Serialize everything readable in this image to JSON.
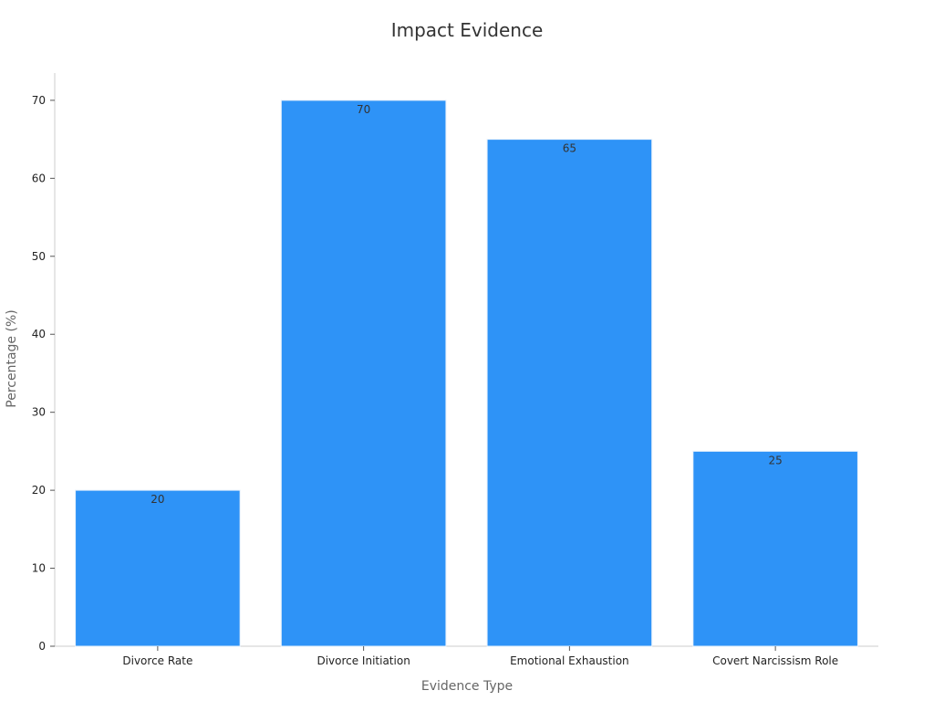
{
  "chart_data": {
    "type": "bar",
    "title": "Impact Evidence",
    "xlabel": "Evidence Type",
    "ylabel": "Percentage (%)",
    "categories": [
      "Divorce Rate",
      "Divorce Initiation",
      "Emotional Exhaustion",
      "Covert Narcissism Role"
    ],
    "values": [
      20,
      70,
      65,
      25
    ],
    "data_labels": [
      "20",
      "70",
      "65",
      "25"
    ],
    "ylim": [
      0,
      73.5
    ],
    "yticks": [
      0,
      10,
      20,
      30,
      40,
      50,
      60,
      70
    ],
    "grid": false,
    "legend": "none",
    "bar_color": "#2e93f7"
  }
}
